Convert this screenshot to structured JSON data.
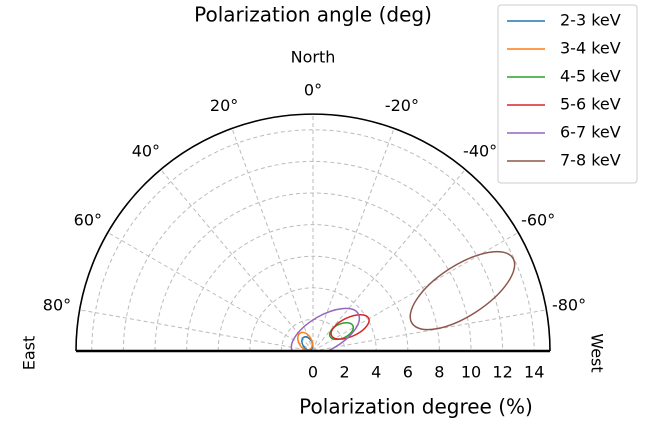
{
  "chart_data": {
    "type": "polar",
    "title": "Polarization angle (deg)",
    "xlabel": "Polarization degree (%)",
    "annotations": {
      "top": "North",
      "left": "East",
      "right": "West"
    },
    "rlim": [
      0,
      15
    ],
    "rticks": [
      0,
      2,
      4,
      6,
      8,
      10,
      12,
      14
    ],
    "thetalim": [
      -90,
      90
    ],
    "thetaticks": [
      {
        "value": 80,
        "label": "80°"
      },
      {
        "value": 60,
        "label": "60°"
      },
      {
        "value": 40,
        "label": "40°"
      },
      {
        "value": 20,
        "label": "20°"
      },
      {
        "value": 0,
        "label": "0°"
      },
      {
        "value": -20,
        "label": "-20°"
      },
      {
        "value": -40,
        "label": "-40°"
      },
      {
        "value": -60,
        "label": "-60°"
      },
      {
        "value": -80,
        "label": "-80°"
      }
    ],
    "grid": true,
    "legend": "upper right",
    "series": [
      {
        "name": "2-3 keV",
        "color": "#1f77b4",
        "angle": 37,
        "degree": 0.6,
        "semi_major": 0.45,
        "semi_minor": 0.3,
        "tilt": -60
      },
      {
        "name": "3-4 keV",
        "color": "#ff7f0e",
        "angle": 39,
        "degree": 0.8,
        "semi_major": 0.6,
        "semi_minor": 0.4,
        "tilt": -60
      },
      {
        "name": "4-5 keV",
        "color": "#2ca02c",
        "angle": -55,
        "degree": 2.2,
        "semi_major": 0.8,
        "semi_minor": 0.45,
        "tilt": 25
      },
      {
        "name": "5-6 keV",
        "color": "#d62728",
        "angle": -57,
        "degree": 2.8,
        "semi_major": 1.3,
        "semi_minor": 0.6,
        "tilt": 25
      },
      {
        "name": "6-7 keV",
        "color": "#9467bd",
        "angle": -34,
        "degree": 1.4,
        "semi_major": 2.4,
        "semi_minor": 1.1,
        "tilt": 30
      },
      {
        "name": "7-8 keV",
        "color": "#8c564b",
        "angle": -68,
        "degree": 10.2,
        "semi_major": 3.8,
        "semi_minor": 1.6,
        "tilt": 33
      }
    ]
  }
}
